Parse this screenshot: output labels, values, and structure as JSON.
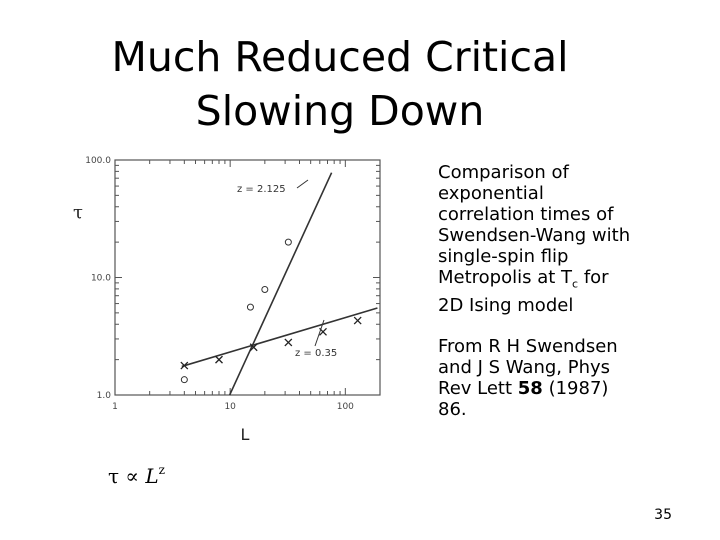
{
  "slide": {
    "title_line1": "Much Reduced Critical",
    "title_line2": "Slowing Down",
    "description_lines": [
      "Comparison of",
      "exponential",
      "correlation times of",
      "Swendsen-Wang with",
      "single-spin flip",
      "Metropolis at T",
      "2D Ising model"
    ],
    "tc_subscript": "c",
    "tc_after": " for",
    "source_lines": [
      "From R H Swendsen",
      "and J S Wang, Phys",
      "Rev Lett "
    ],
    "source_volume": "58",
    "source_year": " (1987)",
    "source_page": "86.",
    "formula_lhs": "τ ∝ ",
    "formula_L": "L",
    "formula_exp": "z",
    "page_number": "35"
  },
  "chart_data": {
    "type": "scatter",
    "xlabel": "L",
    "ylabel": "τ",
    "x_scale": "log",
    "y_scale": "log",
    "xlim": [
      1,
      200
    ],
    "ylim": [
      1,
      100
    ],
    "x_tick_labels": [
      "1",
      "10",
      "100"
    ],
    "y_tick_labels": [
      "1.0",
      "10.0",
      "100.0"
    ],
    "series": [
      {
        "name": "Metropolis",
        "marker": "circle",
        "fit_label": "z = 2.125",
        "fit_exponent": 2.125,
        "points": [
          [
            4,
            1.35
          ],
          [
            15,
            5.6
          ],
          [
            20,
            7.9
          ],
          [
            32,
            20.0
          ]
        ],
        "fit_line": [
          [
            9.9,
            1.0
          ],
          [
            76,
            78
          ]
        ]
      },
      {
        "name": "Swendsen-Wang",
        "marker": "x",
        "fit_label": "z = 0.35",
        "fit_exponent": 0.35,
        "points": [
          [
            4,
            1.78
          ],
          [
            8,
            2.0
          ],
          [
            16,
            2.55
          ],
          [
            32,
            2.8
          ],
          [
            64,
            3.45
          ],
          [
            128,
            4.3
          ]
        ],
        "fit_line": [
          [
            3.8,
            1.75
          ],
          [
            190,
            5.5
          ]
        ]
      }
    ]
  }
}
